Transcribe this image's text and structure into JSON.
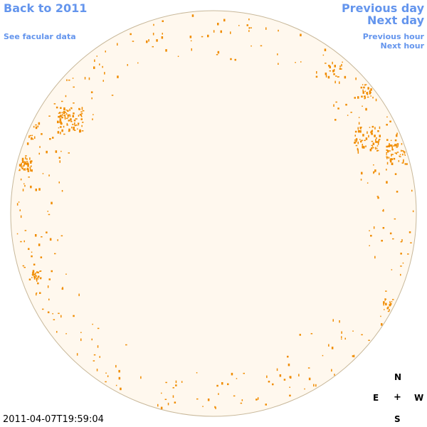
{
  "nav": {
    "back": "Back to 2011",
    "facular": "See facular data",
    "prev_day": "Previous day",
    "next_day": "Next day",
    "prev_hour": "Previous hour",
    "next_hour": "Next hour"
  },
  "compass": {
    "north": "N",
    "east": "E",
    "west": "W",
    "south": "S",
    "center": "+"
  },
  "timestamp": "2011-04-07T19:59:04",
  "colors": {
    "disk_fill": "#fff8ee",
    "disk_stroke": "#c8b89a",
    "feature": "#f08c00",
    "link": "#6495ed"
  }
}
